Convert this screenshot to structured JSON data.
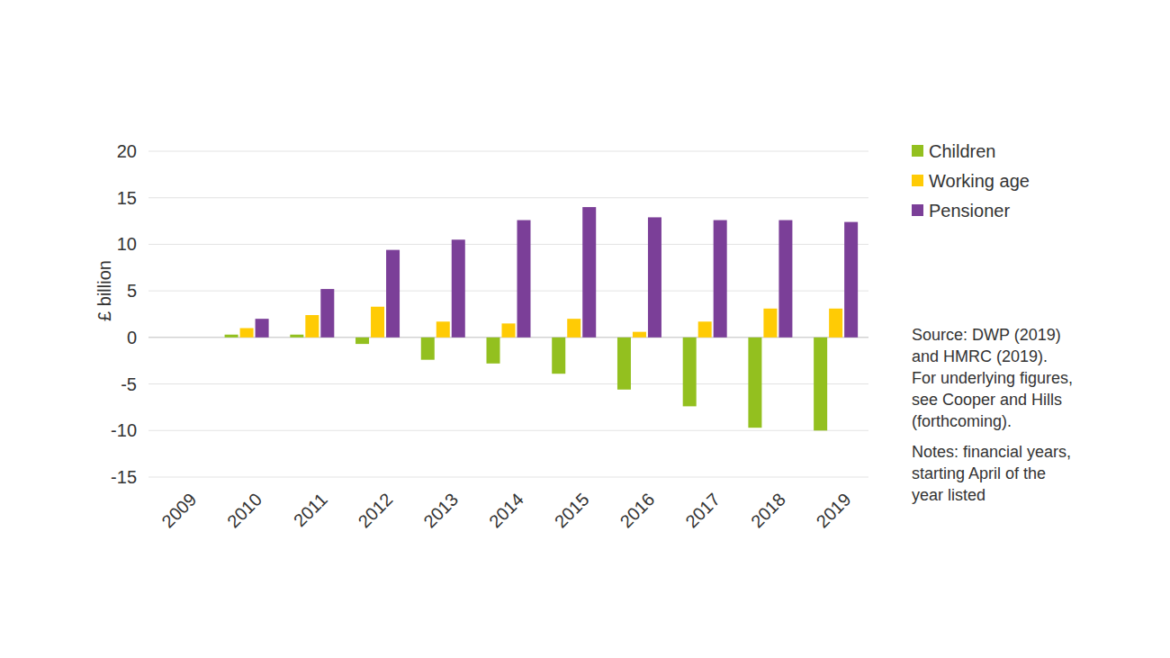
{
  "chart_data": {
    "type": "bar",
    "y_label": "£ billion",
    "categories": [
      "2009",
      "2010",
      "2011",
      "2012",
      "2013",
      "2014",
      "2015",
      "2016",
      "2017",
      "2018",
      "2019"
    ],
    "series": [
      {
        "name": "Children",
        "color": "#93c01f",
        "values": [
          0,
          0.3,
          0.3,
          -0.7,
          -2.4,
          -2.8,
          -3.9,
          -5.6,
          -7.4,
          -9.7,
          -10.0
        ]
      },
      {
        "name": "Working age",
        "color": "#ffcb05",
        "values": [
          0,
          1.0,
          2.4,
          3.3,
          1.7,
          1.5,
          2.0,
          0.6,
          1.7,
          3.1,
          3.1
        ]
      },
      {
        "name": "Pensioner",
        "color": "#7b3f98",
        "values": [
          0,
          2.0,
          5.2,
          9.4,
          10.5,
          12.6,
          14.0,
          12.9,
          12.6,
          12.6,
          12.4
        ]
      }
    ],
    "ylim": [
      -15,
      20
    ],
    "yticks": [
      -15,
      -10,
      -5,
      0,
      5,
      10,
      15,
      20
    ],
    "grid": true,
    "legend": "right",
    "annotations": [
      "Source: DWP (2019)",
      "and HMRC (2019).",
      "For underlying figures,",
      "see Cooper and Hills",
      "(forthcoming).",
      "Notes: financial years,",
      "starting April of the",
      "year listed"
    ]
  }
}
